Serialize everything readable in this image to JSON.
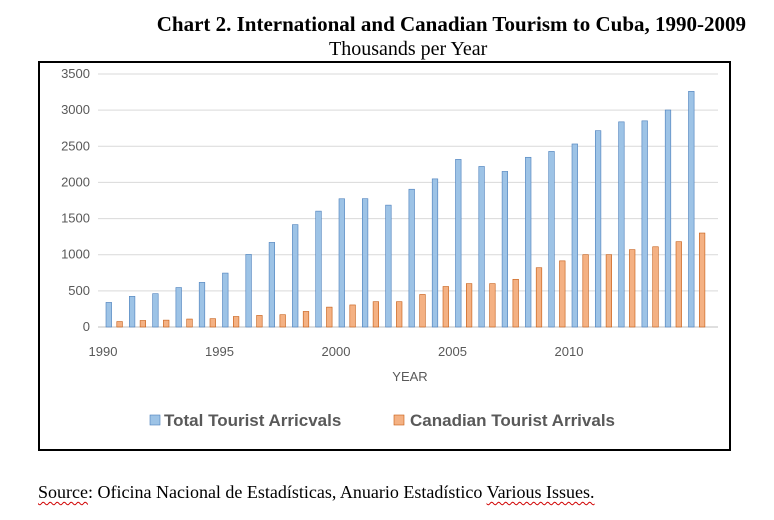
{
  "page": {
    "title": "Chart 2. International and Canadian Tourism to Cuba, 1990-2009",
    "subtitle": "Thousands per Year",
    "source": {
      "word1": "Source",
      "rest": ": Oficina Nacional de Estadísticas, Anuario Estadístico ",
      "word2": "Various Issues."
    }
  },
  "colors": {
    "total_fill": "#9dc3e6",
    "total_stroke": "#4a7ebb",
    "canadian_fill": "#f4b183",
    "canadian_stroke": "#c55a11",
    "grid": "#d9d9d9"
  },
  "chart_data": {
    "type": "bar",
    "xlabel": "YEAR",
    "ylabel": "",
    "ylim": [
      0,
      3500
    ],
    "yticks": [
      "0",
      "500",
      "1000",
      "1500",
      "2000",
      "2500",
      "3000",
      "3500"
    ],
    "x_tick_labels": [
      "1990",
      "1995",
      "2000",
      "2005",
      "2010"
    ],
    "grid": true,
    "legend_position": "bottom",
    "categories": [
      1990,
      1991,
      1992,
      1993,
      1994,
      1995,
      1996,
      1997,
      1998,
      1999,
      2000,
      2001,
      2002,
      2003,
      2004,
      2005,
      2006,
      2007,
      2008,
      2009,
      2010,
      2011,
      2012,
      2013,
      2014
    ],
    "series": [
      {
        "name": "Total Tourist Arricvals",
        "values": [
          340,
          424,
          461,
          546,
          617,
          746,
          1004,
          1170,
          1416,
          1603,
          1774,
          1775,
          1686,
          1906,
          2049,
          2319,
          2221,
          2152,
          2348,
          2429,
          2532,
          2716,
          2838,
          2852,
          3002
        ]
      },
      {
        "name": "Canadian Tourist Arrivals",
        "values": [
          75,
          90,
          95,
          110,
          115,
          145,
          160,
          170,
          215,
          275,
          305,
          350,
          350,
          450,
          560,
          600,
          600,
          660,
          820,
          915,
          1000,
          1000,
          1070,
          1110,
          1180
        ]
      }
    ],
    "extra_category": {
      "year": 2015,
      "values": [
        3260,
        1300
      ]
    }
  }
}
